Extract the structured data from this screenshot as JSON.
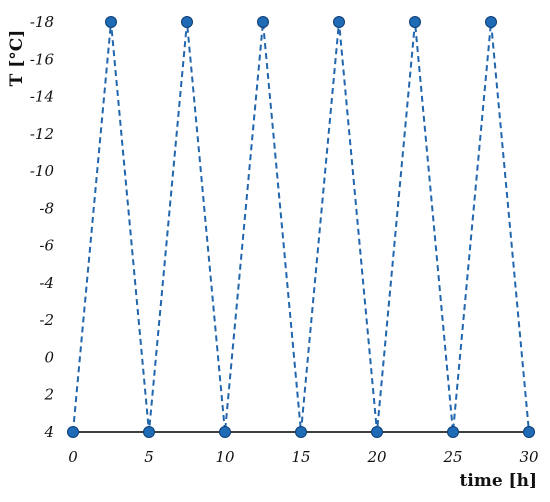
{
  "chart_data": {
    "type": "line",
    "title": "",
    "xlabel": "time [h]",
    "ylabel": "T [°C]",
    "xlim": [
      0,
      30
    ],
    "ylim": [
      4,
      -18
    ],
    "y_axis_inverted": true,
    "grid": false,
    "legend": "none",
    "x_ticks": [
      "0",
      "5",
      "10",
      "15",
      "20",
      "25",
      "30"
    ],
    "y_ticks": [
      "4",
      "2",
      "0",
      "-2",
      "-4",
      "-6",
      "-8",
      "-10",
      "-12",
      "-14",
      "-16",
      "-18"
    ],
    "series": [
      {
        "line_style": "dashed",
        "color": "#2166ac",
        "x": [
          0,
          2.5,
          5,
          7.5,
          10,
          12.5,
          15,
          17.5,
          20,
          22.5,
          25,
          27.5,
          30
        ],
        "y": [
          4,
          -18,
          4,
          -18,
          4,
          -18,
          4,
          -18,
          4,
          -18,
          4,
          -18,
          4
        ]
      }
    ],
    "colors": {
      "series": "#2166ac",
      "marker_fill": "#1f6bb6",
      "marker_edge": "#0d3d75",
      "axis": "#000000"
    }
  }
}
